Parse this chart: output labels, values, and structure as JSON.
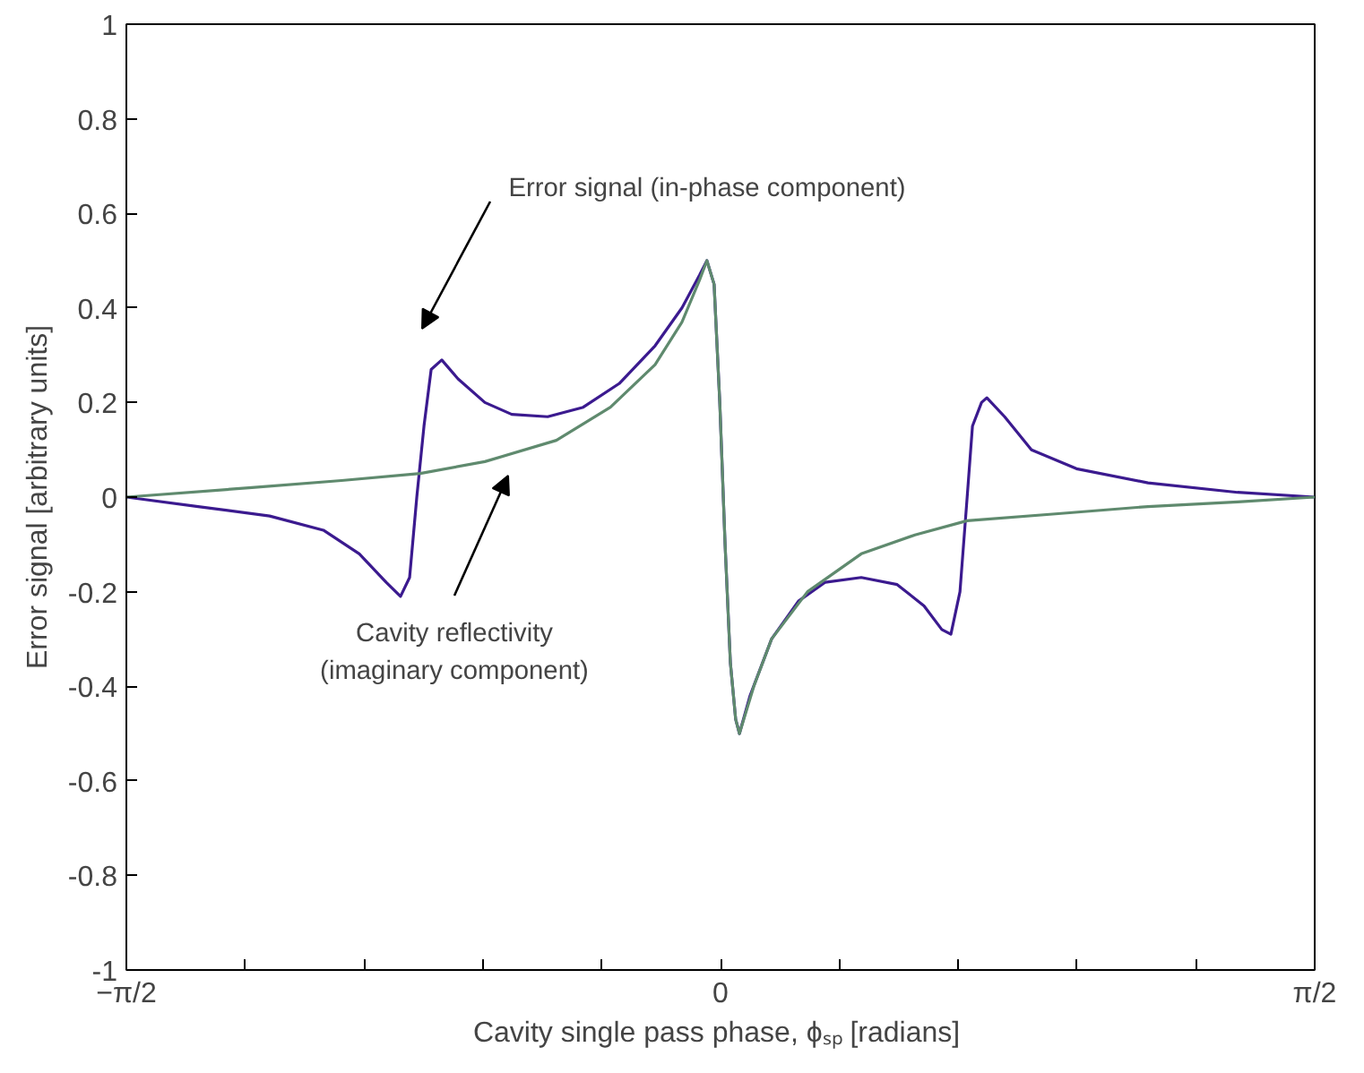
{
  "chart_data": {
    "type": "line",
    "xlabel": "Cavity single pass phase, ϕₛₚ  [radians]",
    "ylabel": "Error signal [arbitrary units]",
    "xlim": [
      -1.5708,
      1.5708
    ],
    "ylim": [
      -1,
      1
    ],
    "xticks": [
      {
        "value": -1.5708,
        "label": "−π/2"
      },
      {
        "value": -1.2566,
        "label": null
      },
      {
        "value": -0.9425,
        "label": null
      },
      {
        "value": -0.6283,
        "label": null
      },
      {
        "value": -0.3142,
        "label": null
      },
      {
        "value": 0,
        "label": "0"
      },
      {
        "value": 0.3142,
        "label": null
      },
      {
        "value": 0.6283,
        "label": null
      },
      {
        "value": 0.9425,
        "label": null
      },
      {
        "value": 1.2566,
        "label": null
      },
      {
        "value": 1.5708,
        "label": "π/2"
      }
    ],
    "yticks": [
      -1,
      -0.8,
      -0.6,
      -0.4,
      -0.2,
      0,
      0.2,
      0.4,
      0.6,
      0.8,
      1
    ],
    "grid": false,
    "marker": "none",
    "line_style": "solid",
    "series": [
      {
        "color": "#3b1a8f",
        "x": [
          -1.5708,
          -1.381,
          -1.192,
          -1.05,
          -0.955,
          -0.884,
          -0.846,
          -0.822,
          -0.803,
          -0.784,
          -0.765,
          -0.737,
          -0.694,
          -0.623,
          -0.552,
          -0.457,
          -0.363,
          -0.268,
          -0.173,
          -0.102,
          -0.055,
          -0.036,
          -0.017,
          -0.002,
          0.012,
          0.026,
          0.04,
          0.05,
          0.078,
          0.135,
          0.206,
          0.277,
          0.372,
          0.467,
          0.538,
          0.585,
          0.609,
          0.633,
          0.652,
          0.666,
          0.69,
          0.704,
          0.751,
          0.822,
          0.941,
          1.13,
          1.367,
          1.5708
        ],
        "values": [
          0,
          -0.02,
          -0.04,
          -0.07,
          -0.12,
          -0.18,
          -0.21,
          -0.17,
          0,
          0.15,
          0.27,
          0.29,
          0.25,
          0.2,
          0.175,
          0.17,
          0.19,
          0.24,
          0.32,
          0.4,
          0.47,
          0.5,
          0.45,
          0.2,
          -0.1,
          -0.35,
          -0.47,
          -0.5,
          -0.42,
          -0.3,
          -0.22,
          -0.18,
          -0.17,
          -0.185,
          -0.23,
          -0.28,
          -0.29,
          -0.2,
          0,
          0.15,
          0.2,
          0.21,
          0.17,
          0.1,
          0.06,
          0.03,
          0.01,
          0
        ]
      },
      {
        "color": "#5f8a6e",
        "x": [
          -1.5708,
          -1.239,
          -1.002,
          -0.794,
          -0.623,
          -0.434,
          -0.291,
          -0.173,
          -0.102,
          -0.055,
          -0.036,
          -0.017,
          -0.002,
          0.012,
          0.026,
          0.04,
          0.05,
          0.088,
          0.135,
          0.23,
          0.372,
          0.514,
          0.652,
          0.893,
          1.13,
          1.367,
          1.5708
        ],
        "values": [
          0,
          0.02,
          0.035,
          0.05,
          0.075,
          0.12,
          0.19,
          0.28,
          0.37,
          0.46,
          0.5,
          0.45,
          0.2,
          -0.1,
          -0.35,
          -0.47,
          -0.5,
          -0.4,
          -0.3,
          -0.2,
          -0.12,
          -0.08,
          -0.05,
          -0.035,
          -0.02,
          -0.01,
          0
        ]
      }
    ],
    "annotations": [
      "Error signal (in-phase component)",
      "Cavity reflectivity\n(imaginary component)"
    ]
  }
}
